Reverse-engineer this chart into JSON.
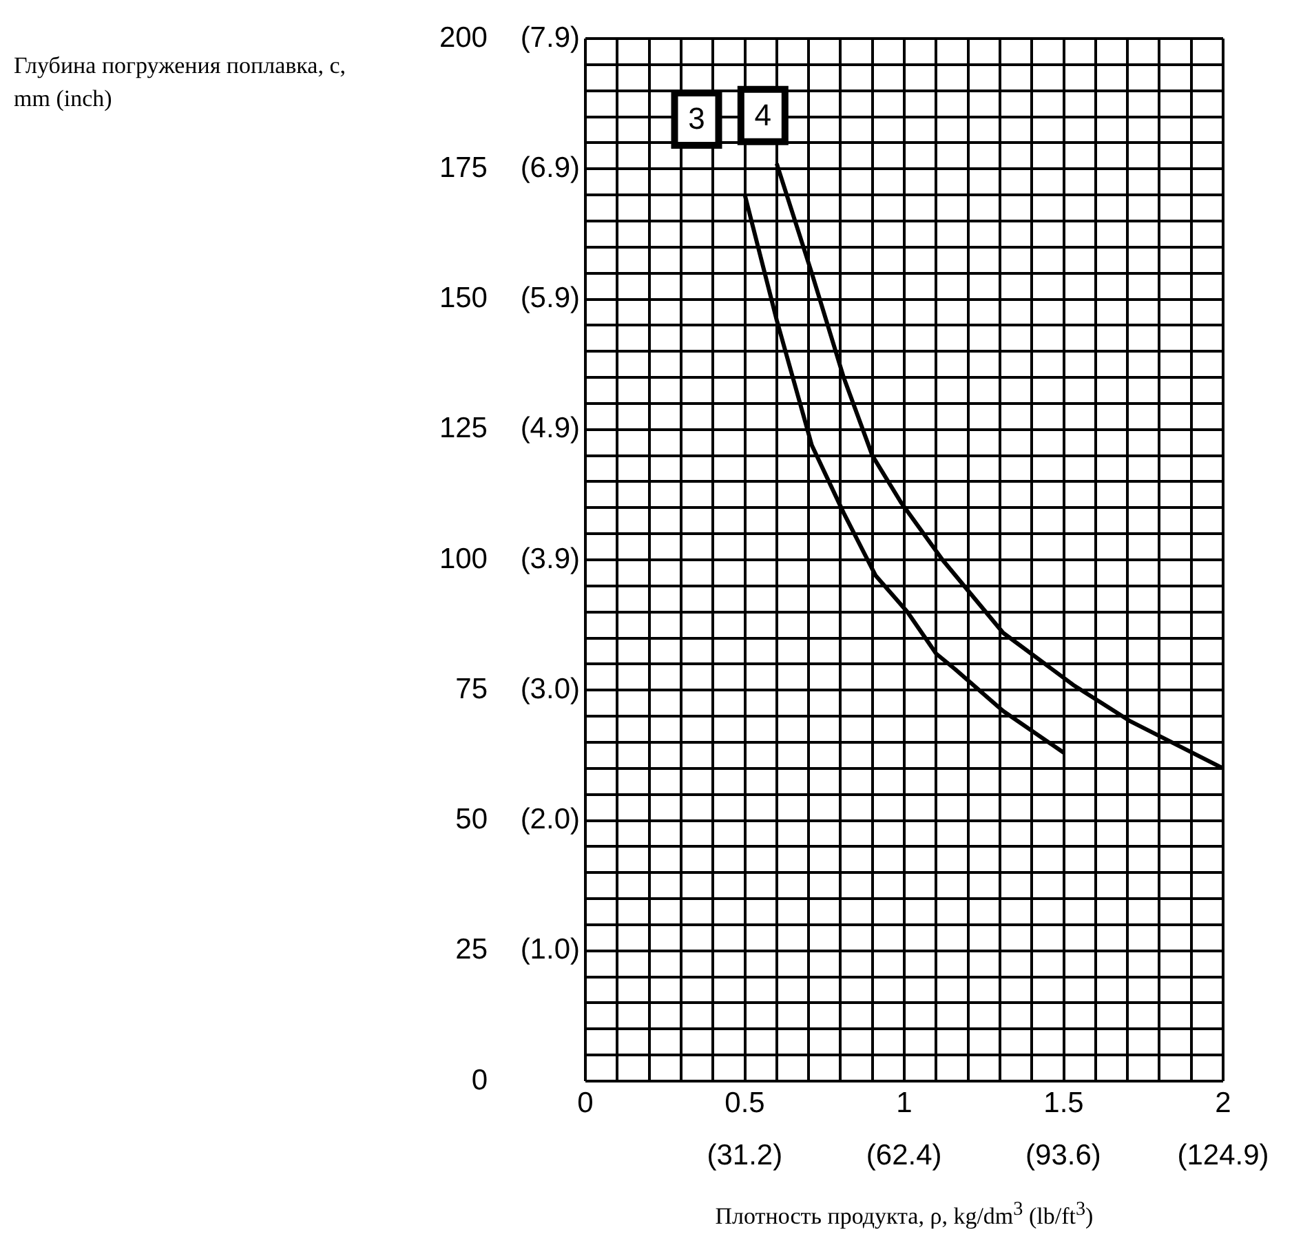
{
  "chart_data": {
    "type": "line",
    "xlabel": "Плотность продукта, ρ, kg/dm$^{3}$ (lb/ft$^{3}$)",
    "ylabel": "Глубина погружения поплавка, c, mm (inch)",
    "xlim": [
      0,
      2
    ],
    "ylim": [
      0,
      200
    ],
    "xticks": [
      0,
      {
        "value": 0.1,
        "label": null
      },
      {
        "value": 0.2,
        "label": null
      },
      {
        "value": 0.3,
        "label": null
      },
      {
        "value": 0.4,
        "label": null
      },
      0.5,
      {
        "value": 0.6,
        "label": null
      },
      {
        "value": 0.7,
        "label": null
      },
      {
        "value": 0.8,
        "label": null
      },
      {
        "value": 0.9,
        "label": null
      },
      1,
      {
        "value": 1.1,
        "label": null
      },
      {
        "value": 1.2,
        "label": null
      },
      {
        "value": 1.3,
        "label": null
      },
      {
        "value": 1.4,
        "label": null
      },
      1.5,
      {
        "value": 1.6,
        "label": null
      },
      {
        "value": 1.7,
        "label": null
      },
      {
        "value": 1.8,
        "label": null
      },
      {
        "value": 1.9,
        "label": null
      },
      2
    ],
    "yticks": [
      0,
      {
        "value": 5,
        "label": null
      },
      {
        "value": 10,
        "label": null
      },
      {
        "value": 15,
        "label": null
      },
      {
        "value": 20,
        "label": null
      },
      25,
      {
        "value": 30,
        "label": null
      },
      {
        "value": 35,
        "label": null
      },
      {
        "value": 40,
        "label": null
      },
      {
        "value": 45,
        "label": null
      },
      50,
      {
        "value": 55,
        "label": null
      },
      {
        "value": 60,
        "label": null
      },
      {
        "value": 65,
        "label": null
      },
      {
        "value": 70,
        "label": null
      },
      75,
      {
        "value": 80,
        "label": null
      },
      {
        "value": 85,
        "label": null
      },
      {
        "value": 90,
        "label": null
      },
      {
        "value": 95,
        "label": null
      },
      100,
      {
        "value": 105,
        "label": null
      },
      {
        "value": 110,
        "label": null
      },
      {
        "value": 115,
        "label": null
      },
      {
        "value": 120,
        "label": null
      },
      125,
      {
        "value": 130,
        "label": null
      },
      {
        "value": 135,
        "label": null
      },
      {
        "value": 140,
        "label": null
      },
      {
        "value": 145,
        "label": null
      },
      150,
      {
        "value": 155,
        "label": null
      },
      {
        "value": 160,
        "label": null
      },
      {
        "value": 165,
        "label": null
      },
      {
        "value": 170,
        "label": null
      },
      175,
      {
        "value": 180,
        "label": null
      },
      {
        "value": 185,
        "label": null
      },
      {
        "value": 190,
        "label": null
      },
      {
        "value": 195,
        "label": null
      },
      200
    ],
    "x2lim": [
      0,
      124.9
    ],
    "x2ticks": [
      {
        "value": 31.2,
        "label": "(31.2)"
      },
      {
        "value": 62.4,
        "label": "(62.4)"
      },
      {
        "value": 93.6,
        "label": "(93.6)"
      },
      {
        "value": 124.9,
        "label": "(124.9)"
      }
    ],
    "y2lim": [
      0,
      7.874
    ],
    "y2ticks": [
      {
        "value": 0.984,
        "label": "(1.0)"
      },
      {
        "value": 1.969,
        "label": "(2.0)"
      },
      {
        "value": 2.953,
        "label": "(3.0)"
      },
      {
        "value": 3.937,
        "label": "(3.9)"
      },
      {
        "value": 4.921,
        "label": "(4.9)"
      },
      {
        "value": 5.906,
        "label": "(5.9)"
      },
      {
        "value": 6.89,
        "label": "(6.9)"
      },
      {
        "value": 7.874,
        "label": "(7.9)"
      }
    ],
    "grid": true,
    "marker": "none",
    "line_style": "solid",
    "series": [
      {
        "name": "3",
        "color": "#000000",
        "x": [
          0.5,
          0.6,
          0.71,
          0.81,
          0.91,
          1.01,
          1.1,
          1.16,
          1.31,
          1.5
        ],
        "values": [
          170,
          146,
          122,
          109,
          97,
          90,
          82,
          79,
          71,
          63
        ]
      },
      {
        "name": "4",
        "color": "#000000",
        "x": [
          0.6,
          0.71,
          0.81,
          0.9,
          0.99,
          1.12,
          1.31,
          1.53,
          1.71,
          2
        ],
        "values": [
          176,
          155,
          135,
          120,
          111,
          100,
          86,
          76,
          69,
          60
        ]
      }
    ]
  }
}
